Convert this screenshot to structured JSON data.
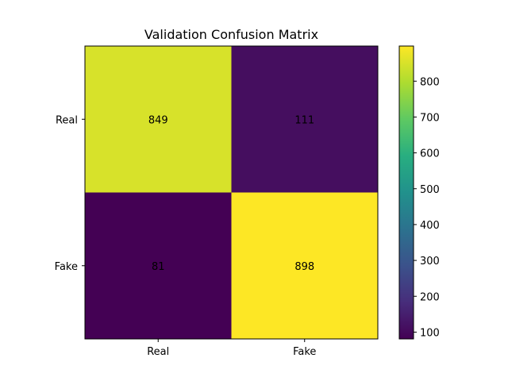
{
  "chart_data": {
    "type": "heatmap",
    "title": "Validation Confusion Matrix",
    "xlabel": "",
    "ylabel": "",
    "x_categories": [
      "Real",
      "Fake"
    ],
    "y_categories": [
      "Real",
      "Fake"
    ],
    "values": [
      [
        849,
        111
      ],
      [
        81,
        898
      ]
    ],
    "colormap": "viridis",
    "colorbar": {
      "range": [
        81,
        898
      ],
      "ticks": [
        100,
        200,
        300,
        400,
        500,
        600,
        700,
        800
      ]
    },
    "grid": false
  }
}
